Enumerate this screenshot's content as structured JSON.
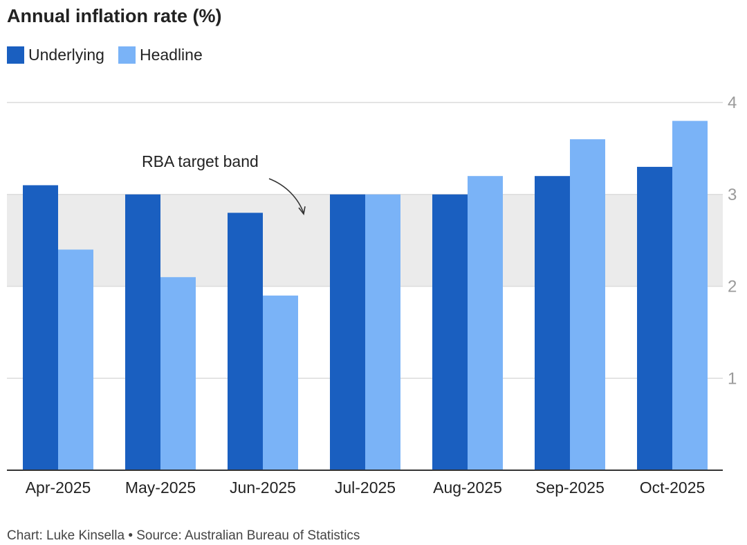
{
  "chart_data": {
    "type": "bar",
    "title": "Annual inflation rate (%)",
    "categories": [
      "Apr-2025",
      "May-2025",
      "Jun-2025",
      "Jul-2025",
      "Aug-2025",
      "Sep-2025",
      "Oct-2025"
    ],
    "series": [
      {
        "name": "Underlying",
        "color": "#1a5fc0",
        "values": [
          3.1,
          3.0,
          2.8,
          3.0,
          3.0,
          3.2,
          3.3
        ]
      },
      {
        "name": "Headline",
        "color": "#7ab3f7",
        "values": [
          2.4,
          2.1,
          1.9,
          3.0,
          3.2,
          3.6,
          3.8
        ]
      }
    ],
    "yticks": [
      "1",
      "2",
      "3",
      "4"
    ],
    "ylim": [
      0,
      4
    ],
    "axis_side": "right",
    "grid": true,
    "legend_position": "top-left",
    "band": {
      "from": 2,
      "to": 3,
      "label": "RBA target band",
      "color": "#ebebeb"
    },
    "source": "Chart: Luke Kinsella • Source: Australian Bureau of Statistics"
  }
}
